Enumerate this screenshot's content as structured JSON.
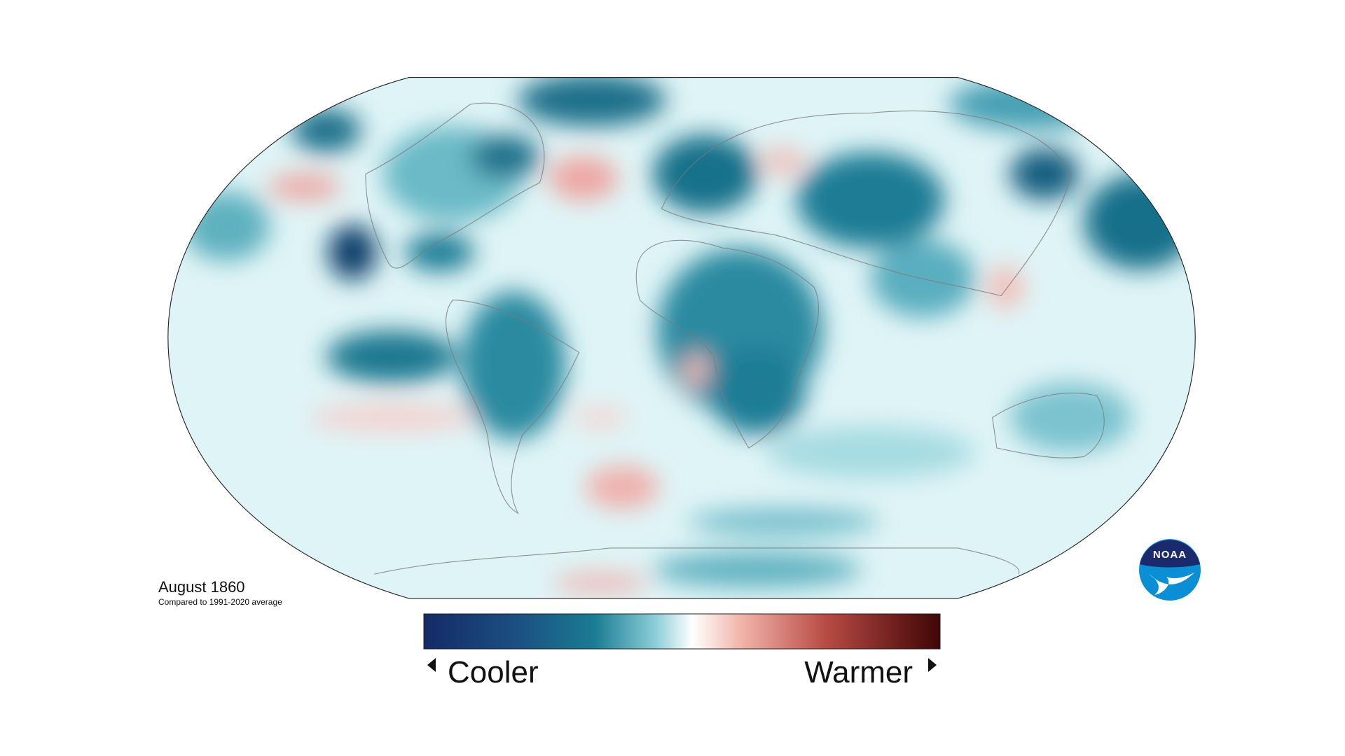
{
  "caption": {
    "title": "August 1860",
    "subtitle": "Compared to 1991-2020 average"
  },
  "legend": {
    "low": "Cooler",
    "high": "Warmer"
  },
  "logo": {
    "text": "NOAA"
  }
}
